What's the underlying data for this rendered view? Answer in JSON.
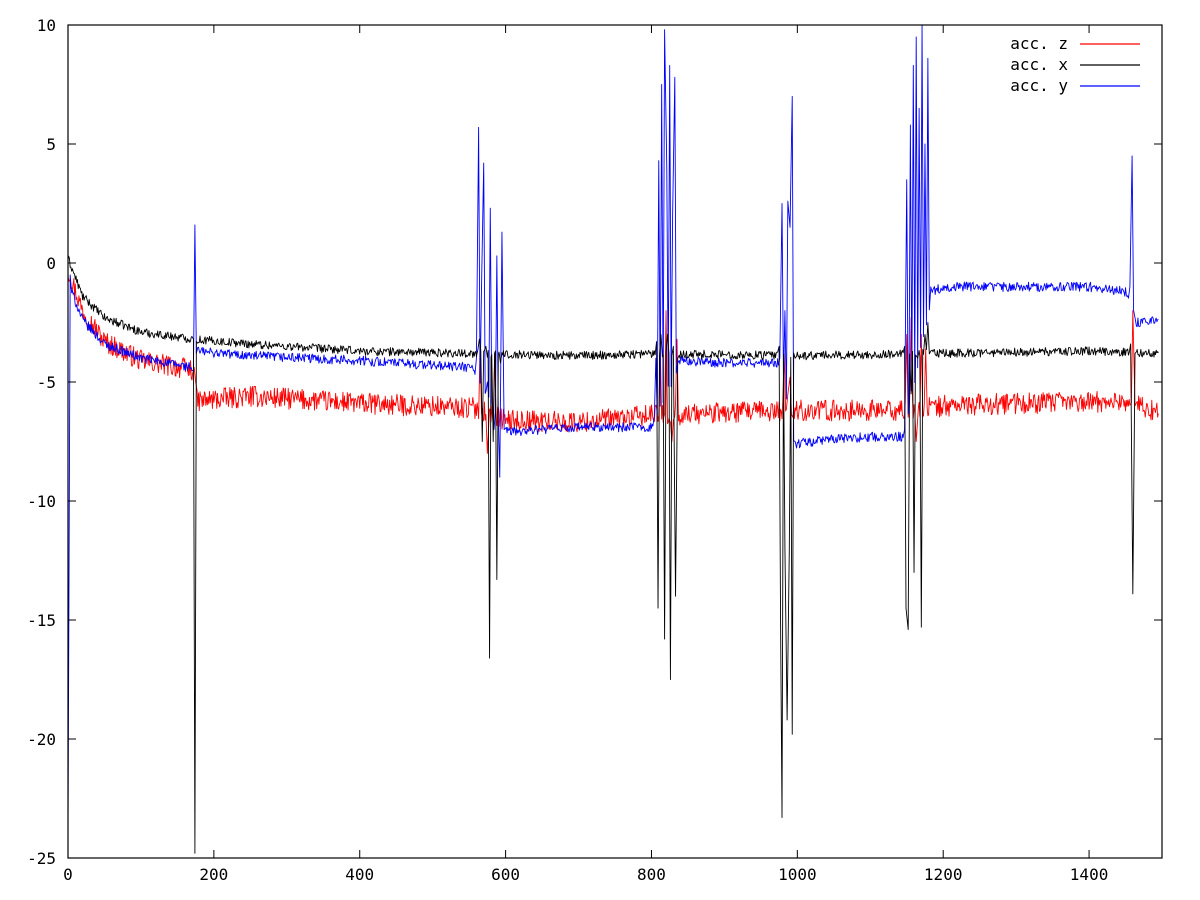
{
  "chart_data": {
    "type": "line",
    "title": "",
    "xlabel": "",
    "ylabel": "",
    "xlim": [
      0,
      1500
    ],
    "ylim": [
      -25,
      10
    ],
    "xticks": [
      0,
      200,
      400,
      600,
      800,
      1000,
      1200,
      1400
    ],
    "yticks": [
      -25,
      -20,
      -15,
      -10,
      -5,
      0,
      5,
      10
    ],
    "grid": false,
    "legend_position": "top-right",
    "series": [
      {
        "name": "acc. z",
        "color": "#ff0000",
        "baseline": [
          [
            0,
            -0.3
          ],
          [
            20,
            -2.0
          ],
          [
            50,
            -3.3
          ],
          [
            100,
            -4.1
          ],
          [
            172,
            -4.5
          ],
          [
            176,
            -5.8
          ],
          [
            250,
            -5.6
          ],
          [
            400,
            -5.9
          ],
          [
            560,
            -6.1
          ],
          [
            600,
            -6.6
          ],
          [
            700,
            -6.7
          ],
          [
            800,
            -6.4
          ],
          [
            1000,
            -6.2
          ],
          [
            1150,
            -6.2
          ],
          [
            1200,
            -6.0
          ],
          [
            1300,
            -5.9
          ],
          [
            1450,
            -5.8
          ],
          [
            1495,
            -6.3
          ]
        ],
        "noise": 0.45,
        "spikes": [
          [
            175,
            -5.0
          ],
          [
            565,
            -3.5
          ],
          [
            575,
            -8.0
          ],
          [
            585,
            -3.8
          ],
          [
            812,
            -3.5
          ],
          [
            820,
            -2.0
          ],
          [
            828,
            -7.5
          ],
          [
            835,
            -3.2
          ],
          [
            982,
            -3.8
          ],
          [
            987,
            -5.5
          ],
          [
            990,
            -4.8
          ],
          [
            1150,
            -3.0
          ],
          [
            1156,
            -2.3
          ],
          [
            1163,
            -7.5
          ],
          [
            1170,
            -3.0
          ],
          [
            1176,
            -3.6
          ],
          [
            1460,
            -2.0
          ],
          [
            1463,
            -6.0
          ]
        ]
      },
      {
        "name": "acc. x",
        "color": "#000000",
        "baseline": [
          [
            0,
            0.2
          ],
          [
            20,
            -1.4
          ],
          [
            50,
            -2.3
          ],
          [
            100,
            -2.9
          ],
          [
            172,
            -3.2
          ],
          [
            250,
            -3.4
          ],
          [
            400,
            -3.7
          ],
          [
            560,
            -3.8
          ],
          [
            700,
            -3.9
          ],
          [
            800,
            -3.8
          ],
          [
            1000,
            -3.9
          ],
          [
            1200,
            -3.8
          ],
          [
            1400,
            -3.7
          ],
          [
            1495,
            -3.8
          ]
        ],
        "noise": 0.18,
        "spikes": [
          [
            172,
            -3.2
          ],
          [
            174,
            -24.8
          ],
          [
            176,
            -3.3
          ],
          [
            564,
            -3.2
          ],
          [
            568,
            -7.5
          ],
          [
            573,
            -3.5
          ],
          [
            578,
            -16.6
          ],
          [
            583,
            -7.5
          ],
          [
            588,
            -13.3
          ],
          [
            593,
            -4.2
          ],
          [
            807,
            -3.3
          ],
          [
            809,
            -14.5
          ],
          [
            813,
            -3.0
          ],
          [
            818,
            -15.8
          ],
          [
            822,
            -3.0
          ],
          [
            826,
            -17.5
          ],
          [
            830,
            -3.5
          ],
          [
            833,
            -14.0
          ],
          [
            836,
            -4.0
          ],
          [
            975,
            -3.5
          ],
          [
            977,
            -15.0
          ],
          [
            979,
            -23.3
          ],
          [
            983,
            -12.0
          ],
          [
            986,
            -19.2
          ],
          [
            989,
            -12.0
          ],
          [
            993,
            -19.8
          ],
          [
            997,
            -4.0
          ],
          [
            1147,
            -3.5
          ],
          [
            1149,
            -14.5
          ],
          [
            1152,
            -15.4
          ],
          [
            1156,
            -5.5
          ],
          [
            1160,
            -13.0
          ],
          [
            1165,
            -4.0
          ],
          [
            1170,
            -15.3
          ],
          [
            1175,
            -3.0
          ],
          [
            1179,
            -2.5
          ],
          [
            1183,
            -3.7
          ],
          [
            1457,
            -3.4
          ],
          [
            1460,
            -13.9
          ],
          [
            1463,
            -3.8
          ]
        ]
      },
      {
        "name": "acc. y",
        "color": "#0000ff",
        "baseline": [
          [
            0,
            -0.8
          ],
          [
            20,
            -2.4
          ],
          [
            50,
            -3.4
          ],
          [
            100,
            -4.0
          ],
          [
            172,
            -4.4
          ],
          [
            176,
            -3.7
          ],
          [
            250,
            -3.9
          ],
          [
            400,
            -4.1
          ],
          [
            555,
            -4.4
          ],
          [
            600,
            -7.1
          ],
          [
            700,
            -6.9
          ],
          [
            800,
            -6.9
          ],
          [
            840,
            -4.1
          ],
          [
            900,
            -4.2
          ],
          [
            975,
            -4.2
          ],
          [
            995,
            -7.6
          ],
          [
            1050,
            -7.4
          ],
          [
            1100,
            -7.3
          ],
          [
            1145,
            -7.3
          ],
          [
            1185,
            -1.2
          ],
          [
            1200,
            -1.0
          ],
          [
            1300,
            -1.0
          ],
          [
            1400,
            -1.0
          ],
          [
            1450,
            -1.2
          ],
          [
            1465,
            -2.5
          ],
          [
            1495,
            -2.3
          ]
        ],
        "noise": 0.2,
        "spikes": [
          [
            0,
            -24.0
          ],
          [
            3,
            -0.5
          ],
          [
            172,
            -4.5
          ],
          [
            174,
            1.6
          ],
          [
            176,
            -3.8
          ],
          [
            560,
            -4.0
          ],
          [
            563,
            5.7
          ],
          [
            567,
            -1.0
          ],
          [
            570,
            4.2
          ],
          [
            575,
            -5.0
          ],
          [
            579,
            2.3
          ],
          [
            584,
            -7.0
          ],
          [
            588,
            0.3
          ],
          [
            592,
            -9.0
          ],
          [
            595,
            1.3
          ],
          [
            598,
            -7.0
          ],
          [
            806,
            -4.0
          ],
          [
            810,
            4.3
          ],
          [
            814,
            7.5
          ],
          [
            818,
            9.8
          ],
          [
            821,
            4.0
          ],
          [
            825,
            8.3
          ],
          [
            829,
            2.0
          ],
          [
            832,
            7.8
          ],
          [
            836,
            -4.2
          ],
          [
            976,
            -4.0
          ],
          [
            979,
            2.5
          ],
          [
            983,
            -2.0
          ],
          [
            987,
            2.6
          ],
          [
            990,
            1.5
          ],
          [
            993,
            7.0
          ],
          [
            997,
            -7.5
          ],
          [
            1147,
            -7.0
          ],
          [
            1150,
            3.5
          ],
          [
            1155,
            5.8
          ],
          [
            1159,
            8.3
          ],
          [
            1163,
            9.5
          ],
          [
            1167,
            6.5
          ],
          [
            1171,
            10.0
          ],
          [
            1175,
            5.0
          ],
          [
            1179,
            8.6
          ],
          [
            1183,
            -1.0
          ],
          [
            1456,
            -1.0
          ],
          [
            1459,
            4.5
          ],
          [
            1463,
            -2.3
          ]
        ]
      }
    ]
  }
}
